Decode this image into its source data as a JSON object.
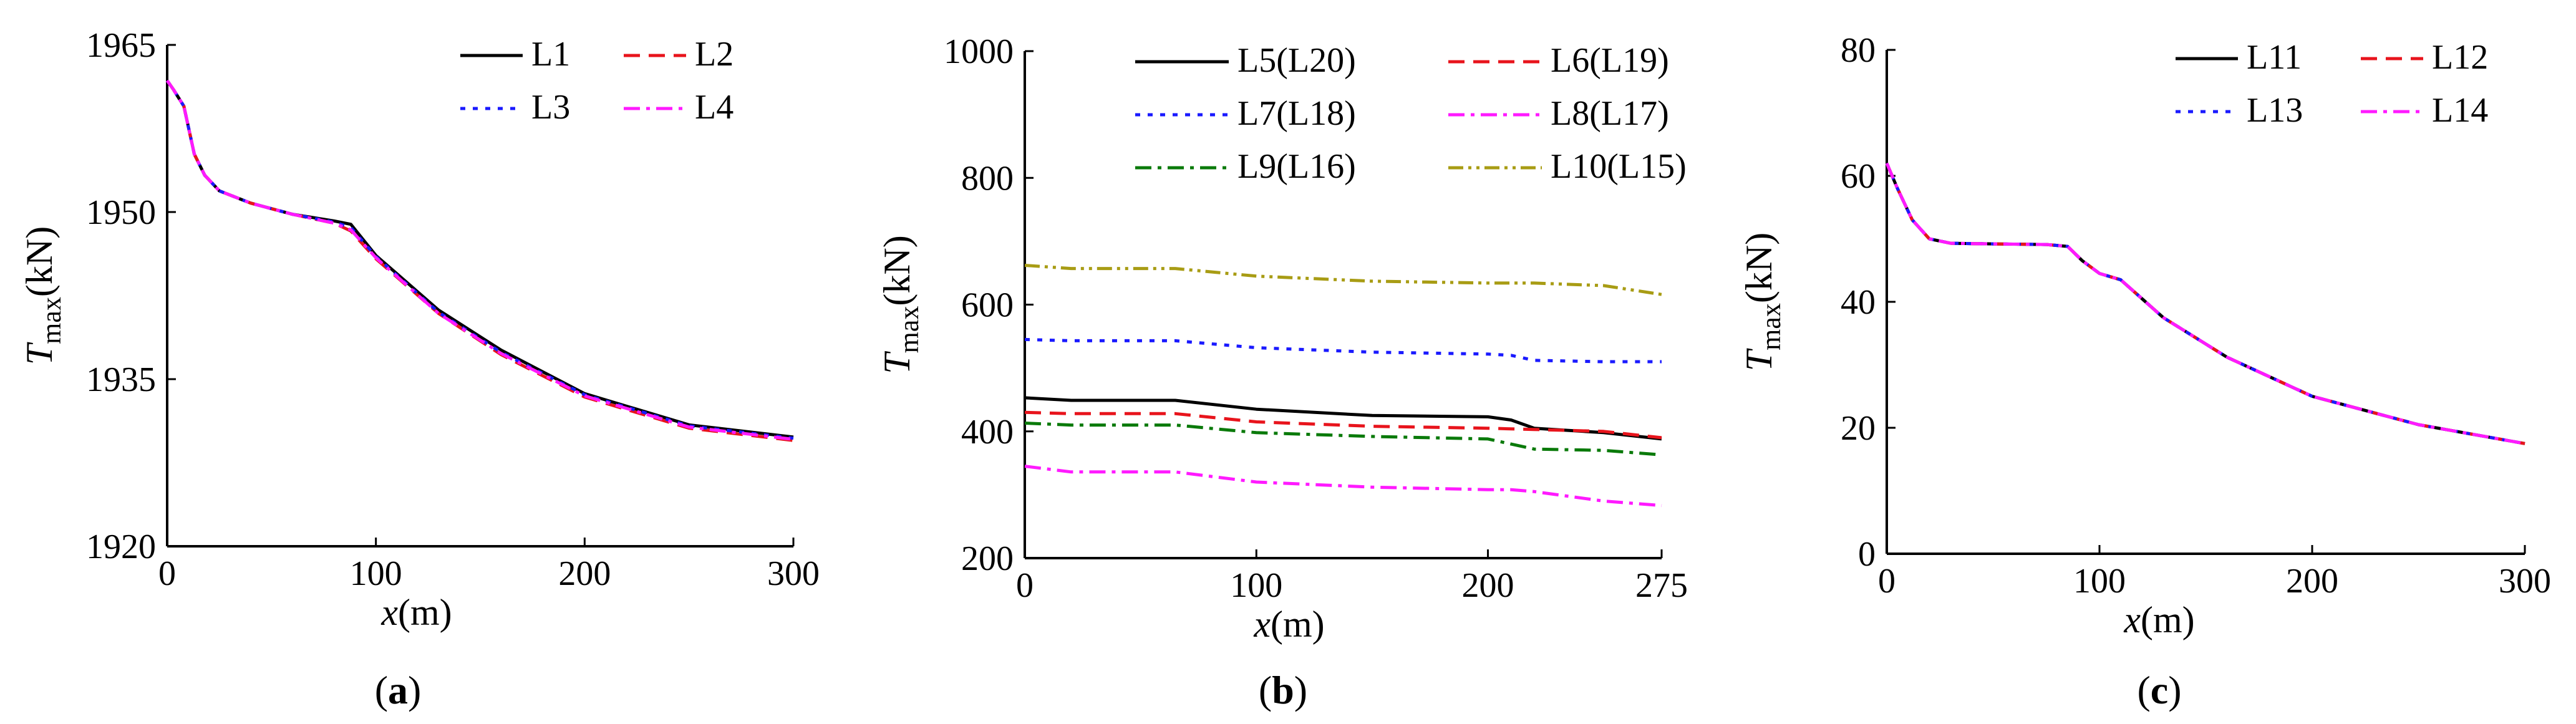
{
  "chart_data": [
    {
      "type": "line",
      "panel_label": "a",
      "xlabel": "x(m)",
      "ylabel": "Tmax(kN)",
      "xlim": [
        0,
        300
      ],
      "ylim": [
        1920,
        1965
      ],
      "xticks": [
        0,
        100,
        200,
        300
      ],
      "yticks": [
        1920,
        1935,
        1950,
        1965
      ],
      "grid": false,
      "legend_loc": "top-right",
      "legend_cols": 2,
      "series": [
        {
          "name": "L1",
          "color": "#000000",
          "dash": "solid",
          "x": [
            0,
            3,
            8,
            13,
            18,
            25,
            40,
            60,
            80,
            88,
            100,
            130,
            160,
            200,
            250,
            300
          ],
          "y": [
            1961.8,
            1961,
            1959.5,
            1955.2,
            1953.3,
            1951.9,
            1950.8,
            1949.8,
            1949.2,
            1948.9,
            1946.1,
            1941.2,
            1937.6,
            1933.7,
            1930.9,
            1929.8
          ]
        },
        {
          "name": "L2",
          "color": "#e8141c",
          "dash": "dashed",
          "x": [
            0,
            3,
            8,
            13,
            18,
            25,
            40,
            60,
            80,
            88,
            100,
            130,
            160,
            200,
            250,
            300
          ],
          "y": [
            1961.8,
            1961,
            1959.5,
            1955.2,
            1953.3,
            1951.9,
            1950.8,
            1949.8,
            1949.0,
            1948.3,
            1945.8,
            1940.9,
            1937.2,
            1933.4,
            1930.6,
            1929.5
          ]
        },
        {
          "name": "L3",
          "color": "#1a1aff",
          "dash": "dotted",
          "x": [
            0,
            3,
            8,
            13,
            18,
            25,
            40,
            60,
            80,
            88,
            100,
            130,
            160,
            200,
            250,
            300
          ],
          "y": [
            1961.8,
            1961,
            1959.5,
            1955.2,
            1953.3,
            1951.9,
            1950.8,
            1949.8,
            1949.1,
            1948.6,
            1946.0,
            1941.0,
            1937.4,
            1933.6,
            1930.8,
            1929.7
          ]
        },
        {
          "name": "L4",
          "color": "#ff1aff",
          "dash": "dashdot",
          "x": [
            0,
            3,
            8,
            13,
            18,
            25,
            40,
            60,
            80,
            88,
            100,
            130,
            160,
            200,
            250,
            300
          ],
          "y": [
            1961.8,
            1961,
            1959.5,
            1955.2,
            1953.3,
            1951.9,
            1950.8,
            1949.8,
            1949.0,
            1948.4,
            1945.9,
            1940.9,
            1937.3,
            1933.5,
            1930.7,
            1929.6
          ]
        }
      ]
    },
    {
      "type": "line",
      "panel_label": "b",
      "xlabel": "x(m)",
      "ylabel": "Tmax(kN)",
      "xlim": [
        0,
        275
      ],
      "ylim": [
        200,
        1000
      ],
      "xticks": [
        0,
        100,
        200,
        275
      ],
      "yticks": [
        200,
        400,
        600,
        800,
        1000
      ],
      "grid": false,
      "legend_loc": "top",
      "legend_cols": 2,
      "series": [
        {
          "name": "L5(L20)",
          "color": "#000000",
          "dash": "solid",
          "x": [
            0,
            20,
            65,
            100,
            150,
            200,
            210,
            220,
            250,
            275
          ],
          "y": [
            453,
            449,
            449,
            435,
            425,
            423,
            418,
            405,
            398,
            388
          ]
        },
        {
          "name": "L6(L19)",
          "color": "#e8141c",
          "dash": "dashed",
          "x": [
            0,
            20,
            65,
            100,
            150,
            200,
            210,
            220,
            250,
            275
          ],
          "y": [
            430,
            428,
            428,
            415,
            408,
            405,
            404,
            403,
            400,
            390
          ]
        },
        {
          "name": "L7(L18)",
          "color": "#1a1aff",
          "dash": "dotted",
          "x": [
            0,
            20,
            65,
            100,
            150,
            200,
            210,
            220,
            250,
            275
          ],
          "y": [
            545,
            543,
            543,
            532,
            525,
            522,
            520,
            512,
            510,
            510
          ]
        },
        {
          "name": "L8(L17)",
          "color": "#ff1aff",
          "dash": "dashdot",
          "x": [
            0,
            20,
            65,
            100,
            150,
            200,
            210,
            220,
            250,
            275
          ],
          "y": [
            345,
            336,
            336,
            320,
            312,
            308,
            308,
            305,
            290,
            283
          ]
        },
        {
          "name": "L9(L16)",
          "color": "#0a7a0a",
          "dash": "dashdot",
          "x": [
            0,
            20,
            65,
            100,
            150,
            200,
            210,
            220,
            250,
            275
          ],
          "y": [
            413,
            410,
            410,
            398,
            392,
            388,
            380,
            372,
            370,
            363
          ]
        },
        {
          "name": "L10(L15)",
          "color": "#a89c14",
          "dash": "dashdotdot",
          "x": [
            0,
            20,
            65,
            100,
            150,
            200,
            210,
            220,
            250,
            275
          ],
          "y": [
            662,
            657,
            657,
            645,
            637,
            634,
            634,
            634,
            630,
            616
          ]
        }
      ]
    },
    {
      "type": "line",
      "panel_label": "c",
      "xlabel": "x(m)",
      "ylabel": "Tmax(kN)",
      "xlim": [
        0,
        300
      ],
      "ylim": [
        0,
        80
      ],
      "xticks": [
        0,
        100,
        200,
        300
      ],
      "yticks": [
        0,
        20,
        40,
        60,
        80
      ],
      "grid": false,
      "legend_loc": "top-right",
      "legend_cols": 2,
      "series": [
        {
          "name": "L11",
          "color": "#000000",
          "dash": "solid",
          "x": [
            0,
            5,
            12,
            20,
            30,
            50,
            75,
            85,
            92,
            100,
            110,
            130,
            160,
            200,
            250,
            300
          ],
          "y": [
            62,
            58,
            53,
            50,
            49.3,
            49.2,
            49.1,
            48.8,
            46.5,
            44.5,
            43.5,
            37.5,
            31.2,
            25,
            20.5,
            17.5
          ]
        },
        {
          "name": "L12",
          "color": "#e8141c",
          "dash": "dashed",
          "x": [
            0,
            5,
            12,
            20,
            30,
            50,
            75,
            85,
            92,
            100,
            110,
            130,
            160,
            200,
            250,
            300
          ],
          "y": [
            62,
            58,
            53,
            50,
            49.3,
            49.2,
            49.1,
            48.8,
            46.5,
            44.5,
            43.5,
            37.5,
            31.2,
            25,
            20.5,
            17.5
          ]
        },
        {
          "name": "L13",
          "color": "#1a1aff",
          "dash": "dotted",
          "x": [
            0,
            5,
            12,
            20,
            30,
            50,
            75,
            85,
            92,
            100,
            110,
            130,
            160,
            200,
            250,
            300
          ],
          "y": [
            62,
            58,
            53,
            50,
            49.3,
            49.2,
            49.1,
            48.8,
            46.5,
            44.5,
            43.5,
            37.5,
            31.2,
            25,
            20.5,
            17.5
          ]
        },
        {
          "name": "L14",
          "color": "#ff1aff",
          "dash": "dashdot",
          "x": [
            0,
            5,
            12,
            20,
            30,
            50,
            75,
            85,
            92,
            100,
            110,
            130,
            160,
            200,
            250,
            300
          ],
          "y": [
            62,
            58,
            53,
            50,
            49.3,
            49.2,
            49.1,
            48.8,
            46.5,
            44.5,
            43.5,
            37.5,
            31.2,
            25,
            20.5,
            17.5
          ]
        }
      ]
    }
  ]
}
